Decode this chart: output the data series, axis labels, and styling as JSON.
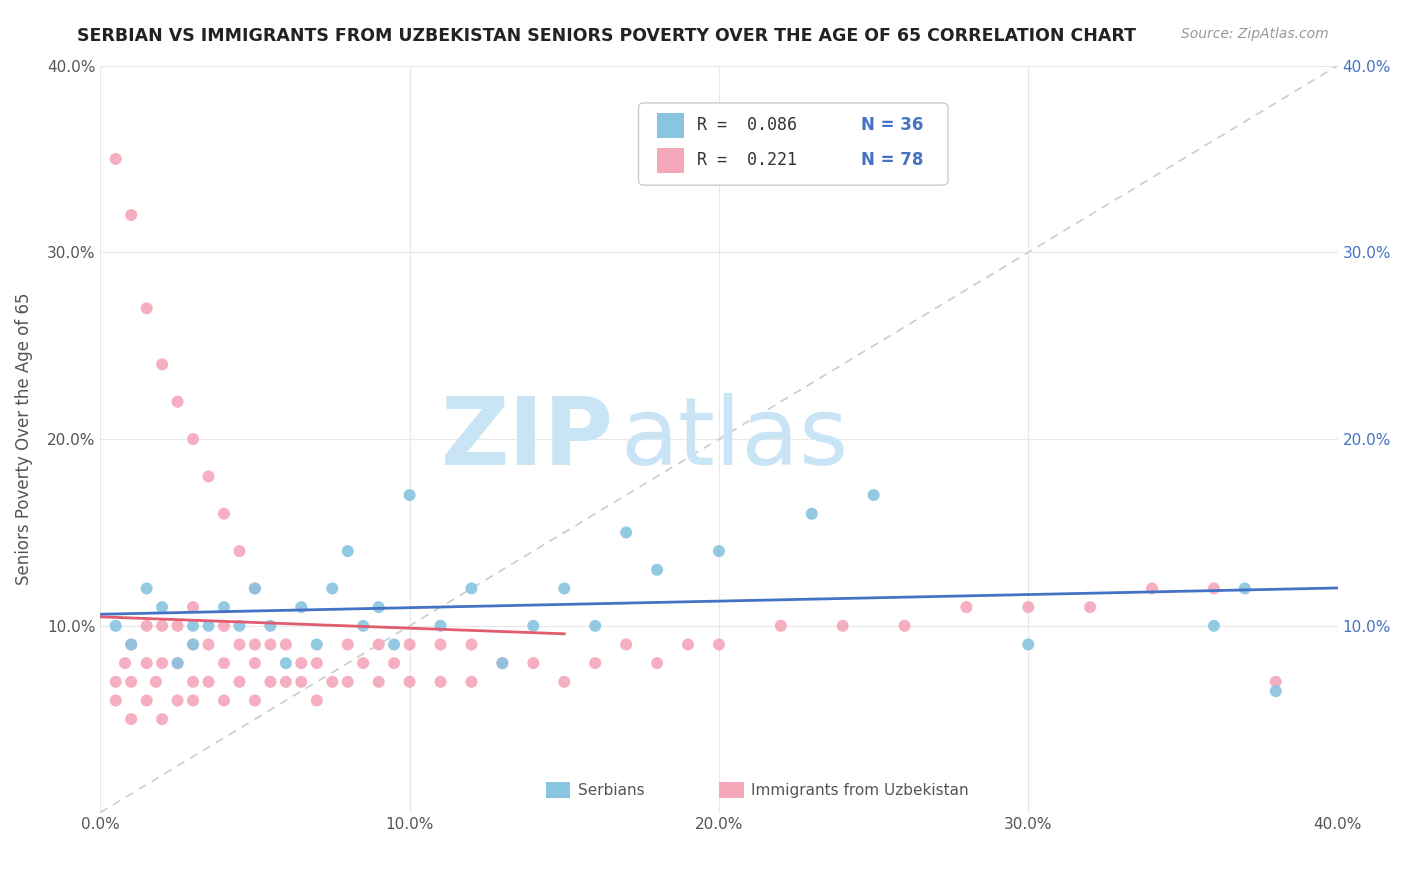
{
  "title": "SERBIAN VS IMMIGRANTS FROM UZBEKISTAN SENIORS POVERTY OVER THE AGE OF 65 CORRELATION CHART",
  "source": "Source: ZipAtlas.com",
  "ylabel": "Seniors Poverty Over the Age of 65",
  "xlim": [
    0.0,
    0.4
  ],
  "ylim": [
    0.0,
    0.4
  ],
  "xtick_labels": [
    "0.0%",
    "10.0%",
    "20.0%",
    "30.0%",
    "40.0%"
  ],
  "xtick_vals": [
    0.0,
    0.1,
    0.2,
    0.3,
    0.4
  ],
  "legend_r1": "R =  0.086",
  "legend_n1": "N = 36",
  "legend_r2": "R =  0.221",
  "legend_n2": "N = 78",
  "serbian_color": "#89C4E1",
  "uzbekistan_color": "#F4A7B9",
  "serbian_line_color": "#4472C4",
  "uzbekistan_line_color": "#E05C6E",
  "diagonal_color": "#CCCCCC",
  "watermark_zip": "ZIP",
  "watermark_atlas": "atlas",
  "watermark_color_zip": "#C8E4F5",
  "watermark_color_atlas": "#C8E4F5",
  "serbian_x": [
    0.005,
    0.01,
    0.015,
    0.02,
    0.025,
    0.03,
    0.03,
    0.035,
    0.04,
    0.045,
    0.05,
    0.055,
    0.06,
    0.065,
    0.07,
    0.075,
    0.08,
    0.085,
    0.09,
    0.095,
    0.1,
    0.11,
    0.12,
    0.13,
    0.14,
    0.15,
    0.16,
    0.17,
    0.18,
    0.2,
    0.23,
    0.25,
    0.3,
    0.36,
    0.37,
    0.38
  ],
  "serbian_y": [
    0.1,
    0.09,
    0.12,
    0.11,
    0.08,
    0.1,
    0.09,
    0.1,
    0.11,
    0.1,
    0.12,
    0.1,
    0.08,
    0.11,
    0.09,
    0.12,
    0.14,
    0.1,
    0.11,
    0.09,
    0.17,
    0.1,
    0.12,
    0.08,
    0.1,
    0.12,
    0.1,
    0.15,
    0.13,
    0.14,
    0.16,
    0.17,
    0.09,
    0.1,
    0.12,
    0.065
  ],
  "uzbekistan_x": [
    0.005,
    0.005,
    0.008,
    0.01,
    0.01,
    0.01,
    0.015,
    0.015,
    0.015,
    0.018,
    0.02,
    0.02,
    0.02,
    0.025,
    0.025,
    0.025,
    0.03,
    0.03,
    0.03,
    0.03,
    0.035,
    0.035,
    0.04,
    0.04,
    0.04,
    0.045,
    0.045,
    0.05,
    0.05,
    0.05,
    0.055,
    0.055,
    0.06,
    0.06,
    0.065,
    0.065,
    0.07,
    0.07,
    0.075,
    0.08,
    0.08,
    0.085,
    0.09,
    0.09,
    0.095,
    0.1,
    0.1,
    0.11,
    0.11,
    0.12,
    0.12,
    0.13,
    0.14,
    0.15,
    0.16,
    0.17,
    0.18,
    0.19,
    0.2,
    0.22,
    0.24,
    0.26,
    0.28,
    0.3,
    0.32,
    0.34,
    0.36,
    0.38,
    0.005,
    0.01,
    0.015,
    0.02,
    0.025,
    0.03,
    0.035,
    0.04,
    0.045,
    0.05
  ],
  "uzbekistan_y": [
    0.06,
    0.07,
    0.08,
    0.05,
    0.07,
    0.09,
    0.06,
    0.08,
    0.1,
    0.07,
    0.05,
    0.08,
    0.1,
    0.06,
    0.08,
    0.1,
    0.06,
    0.07,
    0.09,
    0.11,
    0.07,
    0.09,
    0.06,
    0.08,
    0.1,
    0.07,
    0.09,
    0.06,
    0.08,
    0.09,
    0.07,
    0.09,
    0.07,
    0.09,
    0.07,
    0.08,
    0.06,
    0.08,
    0.07,
    0.07,
    0.09,
    0.08,
    0.07,
    0.09,
    0.08,
    0.07,
    0.09,
    0.07,
    0.09,
    0.07,
    0.09,
    0.08,
    0.08,
    0.07,
    0.08,
    0.09,
    0.08,
    0.09,
    0.09,
    0.1,
    0.1,
    0.1,
    0.11,
    0.11,
    0.11,
    0.12,
    0.12,
    0.07,
    0.35,
    0.32,
    0.27,
    0.24,
    0.22,
    0.2,
    0.18,
    0.16,
    0.14,
    0.12
  ]
}
